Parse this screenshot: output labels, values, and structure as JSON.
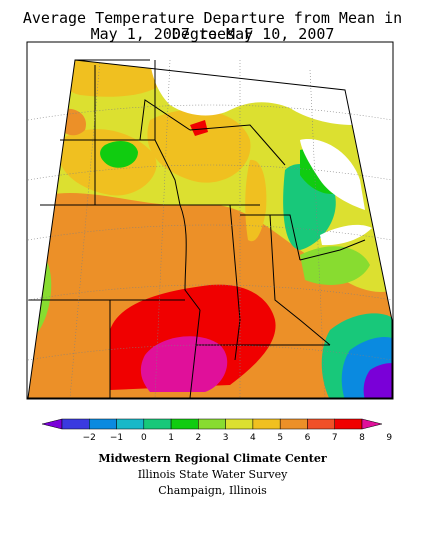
{
  "title": {
    "line1": "Average Temperature Departure from Mean in Degrees F",
    "line2": "May 1, 2007 to May 10, 2007"
  },
  "legend": {
    "ticks": [
      "−2",
      "−1",
      "0",
      "1",
      "2",
      "3",
      "4",
      "5",
      "6",
      "7",
      "8",
      "9"
    ],
    "colors": [
      "#7a00d8",
      "#3a3ae0",
      "#0a8ae0",
      "#18b8c8",
      "#18c87a",
      "#10cc10",
      "#88dc30",
      "#dce030",
      "#f0c020",
      "#ec9028",
      "#f05028",
      "#f00000",
      "#e0109a"
    ]
  },
  "credits": {
    "line1": "Midwestern Regional Climate Center",
    "line2": "Illinois State Water Survey",
    "line3": "Champaign, Illinois"
  }
}
